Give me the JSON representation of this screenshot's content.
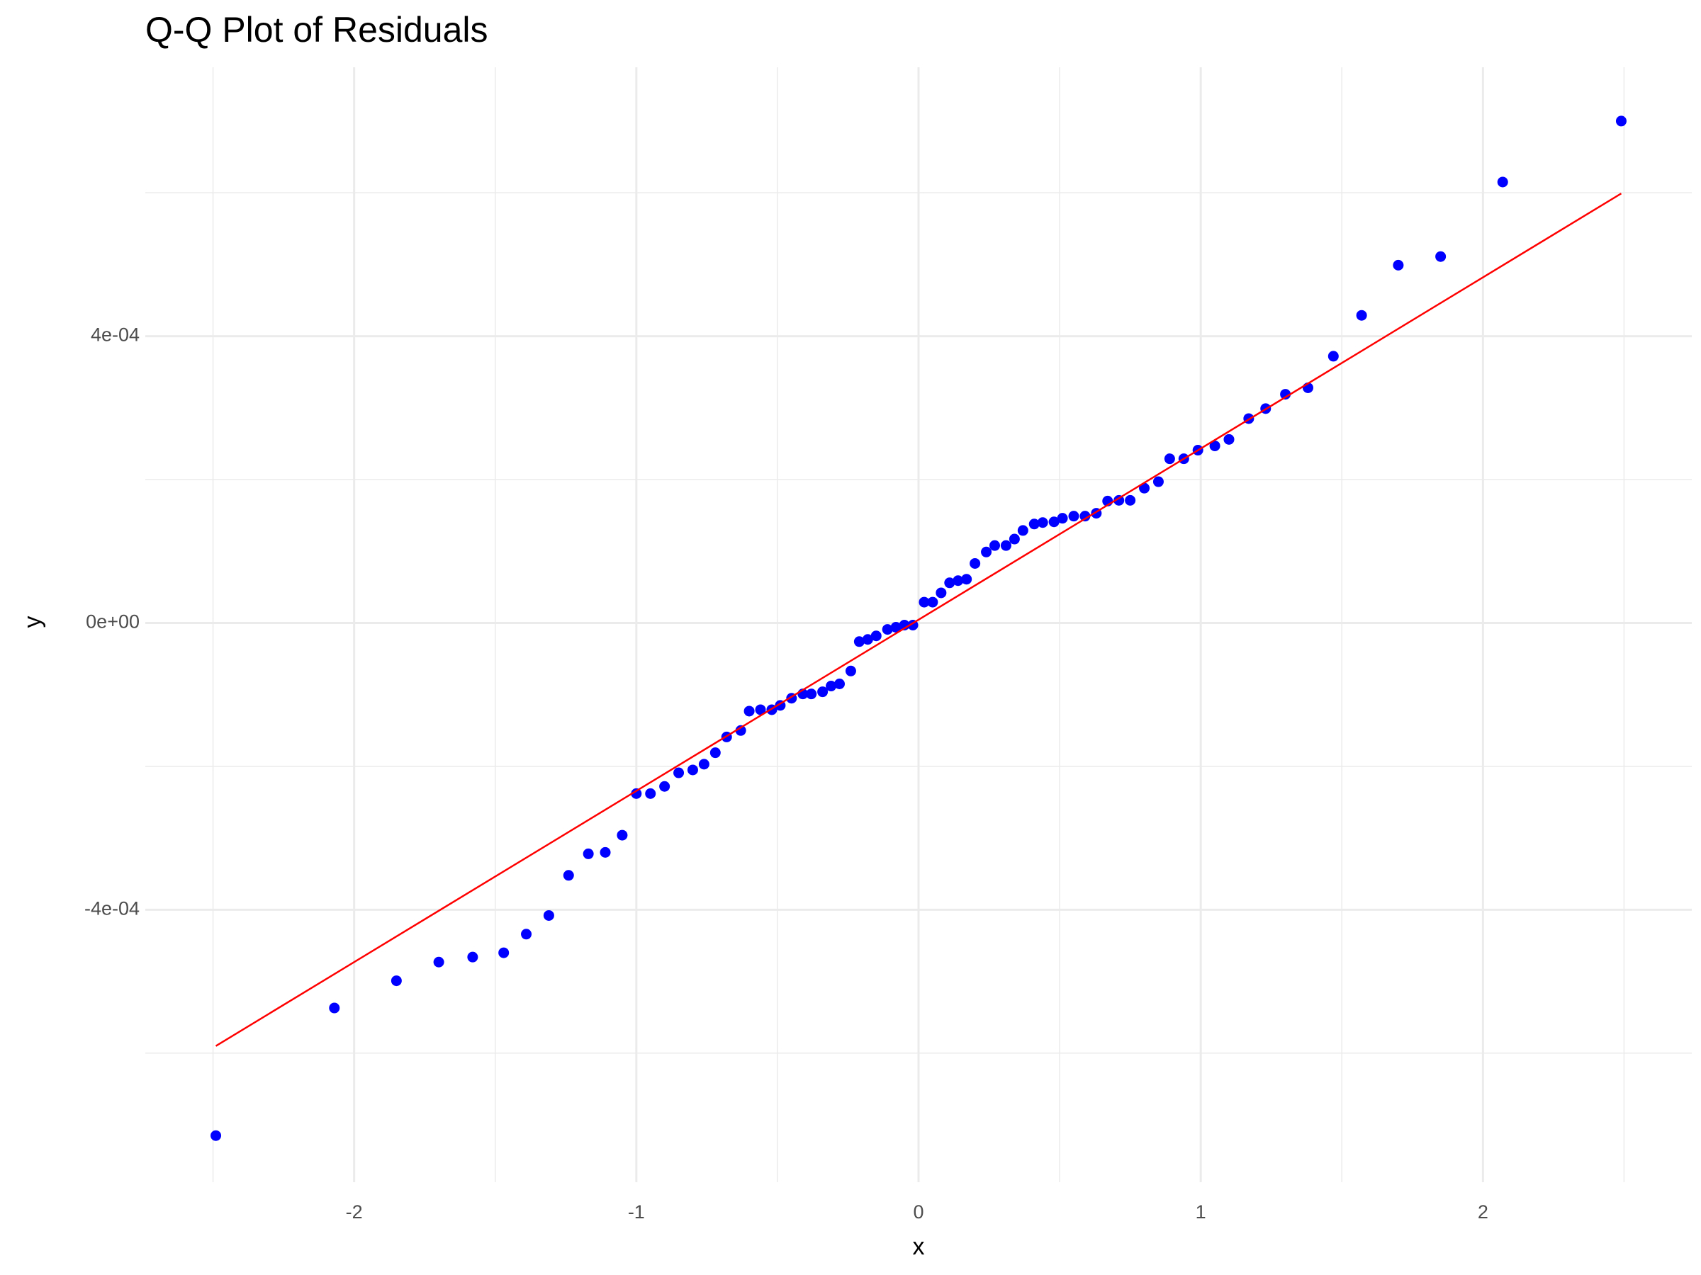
{
  "chart_data": {
    "type": "scatter",
    "title": "Q-Q Plot of Residuals",
    "x_label": "x",
    "y_label": "y",
    "series": [
      {
        "name": "residuals",
        "color": "#0000ff",
        "x": [
          -2.49,
          -2.07,
          -1.85,
          -1.7,
          -1.58,
          -1.47,
          -1.39,
          -1.31,
          -1.24,
          -1.17,
          -1.11,
          -1.05,
          -1.0,
          -0.95,
          -0.9,
          -0.85,
          -0.8,
          -0.76,
          -0.72,
          -0.68,
          -0.63,
          -0.6,
          -0.56,
          -0.52,
          -0.49,
          -0.45,
          -0.41,
          -0.38,
          -0.34,
          -0.31,
          -0.28,
          -0.24,
          -0.21,
          -0.18,
          -0.15,
          -0.11,
          -0.08,
          -0.05,
          -0.02,
          0.02,
          0.05,
          0.08,
          0.11,
          0.14,
          0.17,
          0.2,
          0.24,
          0.27,
          0.31,
          0.34,
          0.37,
          0.41,
          0.44,
          0.48,
          0.51,
          0.55,
          0.59,
          0.63,
          0.67,
          0.71,
          0.75,
          0.8,
          0.85,
          0.89,
          0.94,
          0.99,
          1.05,
          1.1,
          1.17,
          1.23,
          1.3,
          1.38,
          1.47,
          1.57,
          1.7,
          1.85,
          2.07,
          2.49
        ],
        "values": [
          -0.000715,
          -0.000537,
          -0.000499,
          -0.000473,
          -0.000466,
          -0.00046,
          -0.000434,
          -0.000408,
          -0.000352,
          -0.000322,
          -0.00032,
          -0.000296,
          -0.000238,
          -0.000238,
          -0.000228,
          -0.000209,
          -0.000205,
          -0.000197,
          -0.000181,
          -0.000159,
          -0.00015,
          -0.000123,
          -0.000121,
          -0.000121,
          -0.000115,
          -0.000105,
          -9.9e-05,
          -9.9e-05,
          -9.6e-05,
          -8.8e-05,
          -8.5e-05,
          -6.7e-05,
          -2.6e-05,
          -2.3e-05,
          -1.8e-05,
          -9e-06,
          -6e-06,
          -3e-06,
          -3e-06,
          2.9e-05,
          2.9e-05,
          4.2e-05,
          5.6e-05,
          5.9e-05,
          6.1e-05,
          8.3e-05,
          9.9e-05,
          0.000108,
          0.000108,
          0.000117,
          0.000129,
          0.000138,
          0.00014,
          0.000141,
          0.000146,
          0.000149,
          0.000149,
          0.000153,
          0.00017,
          0.000171,
          0.000171,
          0.000188,
          0.000197,
          0.000229,
          0.000229,
          0.000241,
          0.000247,
          0.000256,
          0.000285,
          0.000299,
          0.000319,
          0.000328,
          0.000372,
          0.000429,
          0.000499,
          0.000511,
          0.000615,
          0.0007
        ]
      }
    ],
    "reference_line": {
      "color": "#ff0000",
      "x": [
        -2.49,
        2.49
      ],
      "values": [
        -0.00059,
        0.000599
      ]
    },
    "xlim": [
      -2.74,
      2.74
    ],
    "ylim": [
      -0.00078,
      0.000775
    ],
    "xticks": [
      -2,
      -1,
      0,
      1,
      2
    ],
    "yticks": [
      {
        "value": -0.0004,
        "label": "-4e-04"
      },
      {
        "value": 0,
        "label": "0e+00"
      },
      {
        "value": 0.0004,
        "label": "4e-04"
      }
    ],
    "x_minor_grid": [
      -2.5,
      -1.5,
      -0.5,
      0.5,
      1.5,
      2.5
    ],
    "y_minor_grid": [
      -0.0006,
      -0.0002,
      0.0002,
      0.0006
    ],
    "grid": true
  }
}
